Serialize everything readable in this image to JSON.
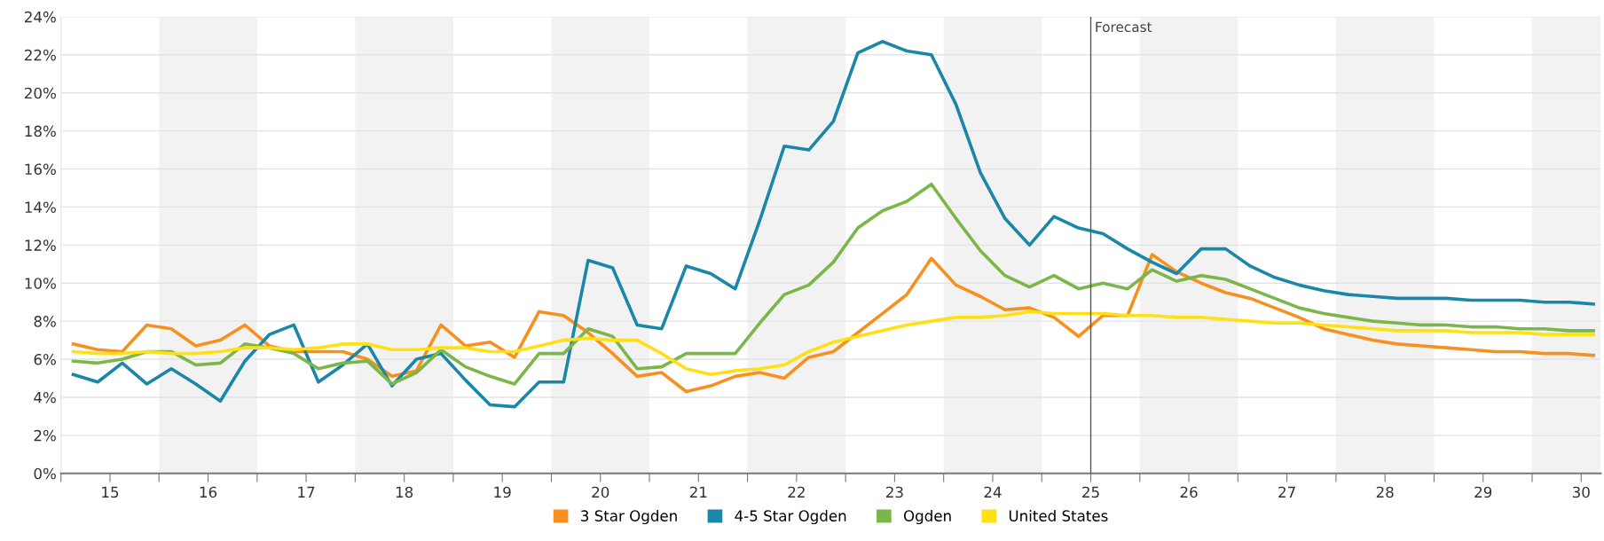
{
  "chart_data": {
    "type": "line",
    "x": [
      14.625,
      14.875,
      15.125,
      15.375,
      15.625,
      15.875,
      16.125,
      16.375,
      16.625,
      16.875,
      17.125,
      17.375,
      17.625,
      17.875,
      18.125,
      18.375,
      18.625,
      18.875,
      19.125,
      19.375,
      19.625,
      19.875,
      20.125,
      20.375,
      20.625,
      20.875,
      21.125,
      21.375,
      21.625,
      21.875,
      22.125,
      22.375,
      22.625,
      22.875,
      23.125,
      23.375,
      23.625,
      23.875,
      24.125,
      24.375,
      24.625,
      24.875,
      25.125,
      25.375,
      25.625,
      25.875,
      26.125,
      26.375,
      26.625,
      26.875,
      27.125,
      27.375,
      27.625,
      27.875,
      28.125,
      28.375,
      28.625,
      28.875,
      29.125,
      29.375,
      29.625,
      29.875,
      30.125
    ],
    "series": [
      {
        "name": "3 Star Ogden",
        "color": "#f7901e",
        "values": [
          6.8,
          6.5,
          6.4,
          7.8,
          7.6,
          6.7,
          7.0,
          7.8,
          6.7,
          6.4,
          6.4,
          6.4,
          6.0,
          5.1,
          5.4,
          7.8,
          6.7,
          6.9,
          6.1,
          8.5,
          8.3,
          7.4,
          6.3,
          5.1,
          5.3,
          4.3,
          4.6,
          5.1,
          5.3,
          5.0,
          6.1,
          6.4,
          7.4,
          8.4,
          9.4,
          11.3,
          9.9,
          9.3,
          8.6,
          8.7,
          8.2,
          7.2,
          8.3,
          8.3,
          11.5,
          10.6,
          10.0,
          9.5,
          9.2,
          8.7,
          8.2,
          7.6,
          7.3,
          7.0,
          6.8,
          6.7,
          6.6,
          6.5,
          6.4,
          6.4,
          6.3,
          6.3,
          6.2
        ]
      },
      {
        "name": "4-5 Star Ogden",
        "color": "#1a87a8",
        "values": [
          5.2,
          4.8,
          5.8,
          4.7,
          5.5,
          4.7,
          3.8,
          5.9,
          7.3,
          7.8,
          4.8,
          5.7,
          6.8,
          4.6,
          6.0,
          6.3,
          4.9,
          3.6,
          3.5,
          4.8,
          4.8,
          11.2,
          10.8,
          7.8,
          7.6,
          10.9,
          10.5,
          9.7,
          13.3,
          17.2,
          17.0,
          18.5,
          22.1,
          22.7,
          22.2,
          22.0,
          19.4,
          15.8,
          13.4,
          12.0,
          13.5,
          12.9,
          12.6,
          11.8,
          11.1,
          10.5,
          11.8,
          11.8,
          10.9,
          10.3,
          9.9,
          9.6,
          9.4,
          9.3,
          9.2,
          9.2,
          9.2,
          9.1,
          9.1,
          9.1,
          9.0,
          9.0,
          8.9
        ]
      },
      {
        "name": "Ogden",
        "color": "#7ab648",
        "values": [
          5.9,
          5.8,
          6.0,
          6.4,
          6.4,
          5.7,
          5.8,
          6.8,
          6.6,
          6.3,
          5.5,
          5.8,
          5.9,
          4.7,
          5.3,
          6.5,
          5.6,
          5.1,
          4.7,
          6.3,
          6.3,
          7.6,
          7.2,
          5.5,
          5.6,
          6.3,
          6.3,
          6.3,
          7.9,
          9.4,
          9.9,
          11.1,
          12.9,
          13.8,
          14.3,
          15.2,
          13.4,
          11.7,
          10.4,
          9.8,
          10.4,
          9.7,
          10.0,
          9.7,
          10.7,
          10.1,
          10.4,
          10.2,
          9.7,
          9.2,
          8.7,
          8.4,
          8.2,
          8.0,
          7.9,
          7.8,
          7.8,
          7.7,
          7.7,
          7.6,
          7.6,
          7.5,
          7.5
        ]
      },
      {
        "name": "United States",
        "color": "#ffe014",
        "values": [
          6.4,
          6.3,
          6.3,
          6.4,
          6.3,
          6.3,
          6.4,
          6.6,
          6.6,
          6.5,
          6.6,
          6.8,
          6.8,
          6.5,
          6.5,
          6.6,
          6.6,
          6.4,
          6.4,
          6.7,
          7.0,
          7.1,
          7.0,
          7.0,
          6.3,
          5.5,
          5.2,
          5.4,
          5.5,
          5.7,
          6.4,
          6.9,
          7.2,
          7.5,
          7.8,
          8.0,
          8.2,
          8.2,
          8.3,
          8.5,
          8.4,
          8.4,
          8.4,
          8.3,
          8.3,
          8.2,
          8.2,
          8.1,
          8.0,
          7.9,
          7.9,
          7.8,
          7.7,
          7.6,
          7.5,
          7.5,
          7.5,
          7.4,
          7.4,
          7.4,
          7.3,
          7.3,
          7.3
        ]
      }
    ],
    "xlim": [
      14.5,
      30.2
    ],
    "xticks": [
      {
        "value": 14.5,
        "label": null
      },
      {
        "value": 15,
        "label": "15"
      },
      {
        "value": 15.5,
        "label": null
      },
      {
        "value": 16,
        "label": "16"
      },
      {
        "value": 16.5,
        "label": null
      },
      {
        "value": 17,
        "label": "17"
      },
      {
        "value": 17.5,
        "label": null
      },
      {
        "value": 18,
        "label": "18"
      },
      {
        "value": 18.5,
        "label": null
      },
      {
        "value": 19,
        "label": "19"
      },
      {
        "value": 19.5,
        "label": null
      },
      {
        "value": 20,
        "label": "20"
      },
      {
        "value": 20.5,
        "label": null
      },
      {
        "value": 21,
        "label": "21"
      },
      {
        "value": 21.5,
        "label": null
      },
      {
        "value": 22,
        "label": "22"
      },
      {
        "value": 22.5,
        "label": null
      },
      {
        "value": 23,
        "label": "23"
      },
      {
        "value": 23.5,
        "label": null
      },
      {
        "value": 24,
        "label": "24"
      },
      {
        "value": 24.5,
        "label": null
      },
      {
        "value": 25,
        "label": "25"
      },
      {
        "value": 25.5,
        "label": null
      },
      {
        "value": 26,
        "label": "26"
      },
      {
        "value": 26.5,
        "label": null
      },
      {
        "value": 27,
        "label": "27"
      },
      {
        "value": 27.5,
        "label": null
      },
      {
        "value": 28,
        "label": "28"
      },
      {
        "value": 28.5,
        "label": null
      },
      {
        "value": 29,
        "label": "29"
      },
      {
        "value": 29.5,
        "label": null
      },
      {
        "value": 30,
        "label": "30"
      }
    ],
    "ylim": [
      0,
      24
    ],
    "yticks": [
      {
        "value": 0,
        "label": "0%"
      },
      {
        "value": 2,
        "label": "2%"
      },
      {
        "value": 4,
        "label": "4%"
      },
      {
        "value": 6,
        "label": "6%"
      },
      {
        "value": 8,
        "label": "8%"
      },
      {
        "value": 10,
        "label": "10%"
      },
      {
        "value": 12,
        "label": "12%"
      },
      {
        "value": 14,
        "label": "14%"
      },
      {
        "value": 16,
        "label": "16%"
      },
      {
        "value": 18,
        "label": "18%"
      },
      {
        "value": 20,
        "label": "20%"
      },
      {
        "value": 22,
        "label": "22%"
      },
      {
        "value": 24,
        "label": "24%"
      }
    ],
    "ref_lines": [
      {
        "axis": "x",
        "value": 25,
        "label": "Forecast",
        "color": "#555555",
        "line_style": "solid"
      }
    ],
    "bands": [
      {
        "axis": "x",
        "from": 15.5,
        "to": 16.5,
        "color": "#f2f2f2"
      },
      {
        "axis": "x",
        "from": 17.5,
        "to": 18.5,
        "color": "#f2f2f2"
      },
      {
        "axis": "x",
        "from": 19.5,
        "to": 20.5,
        "color": "#f2f2f2"
      },
      {
        "axis": "x",
        "from": 21.5,
        "to": 22.5,
        "color": "#f2f2f2"
      },
      {
        "axis": "x",
        "from": 23.5,
        "to": 24.5,
        "color": "#f2f2f2"
      },
      {
        "axis": "x",
        "from": 25.5,
        "to": 26.5,
        "color": "#f2f2f2"
      },
      {
        "axis": "x",
        "from": 27.5,
        "to": 28.5,
        "color": "#f2f2f2"
      },
      {
        "axis": "x",
        "from": 29.5,
        "to": 30.2,
        "color": "#f2f2f2"
      }
    ],
    "grid": "y",
    "legend": "bottom",
    "marker": "none",
    "line_style": "solid"
  }
}
